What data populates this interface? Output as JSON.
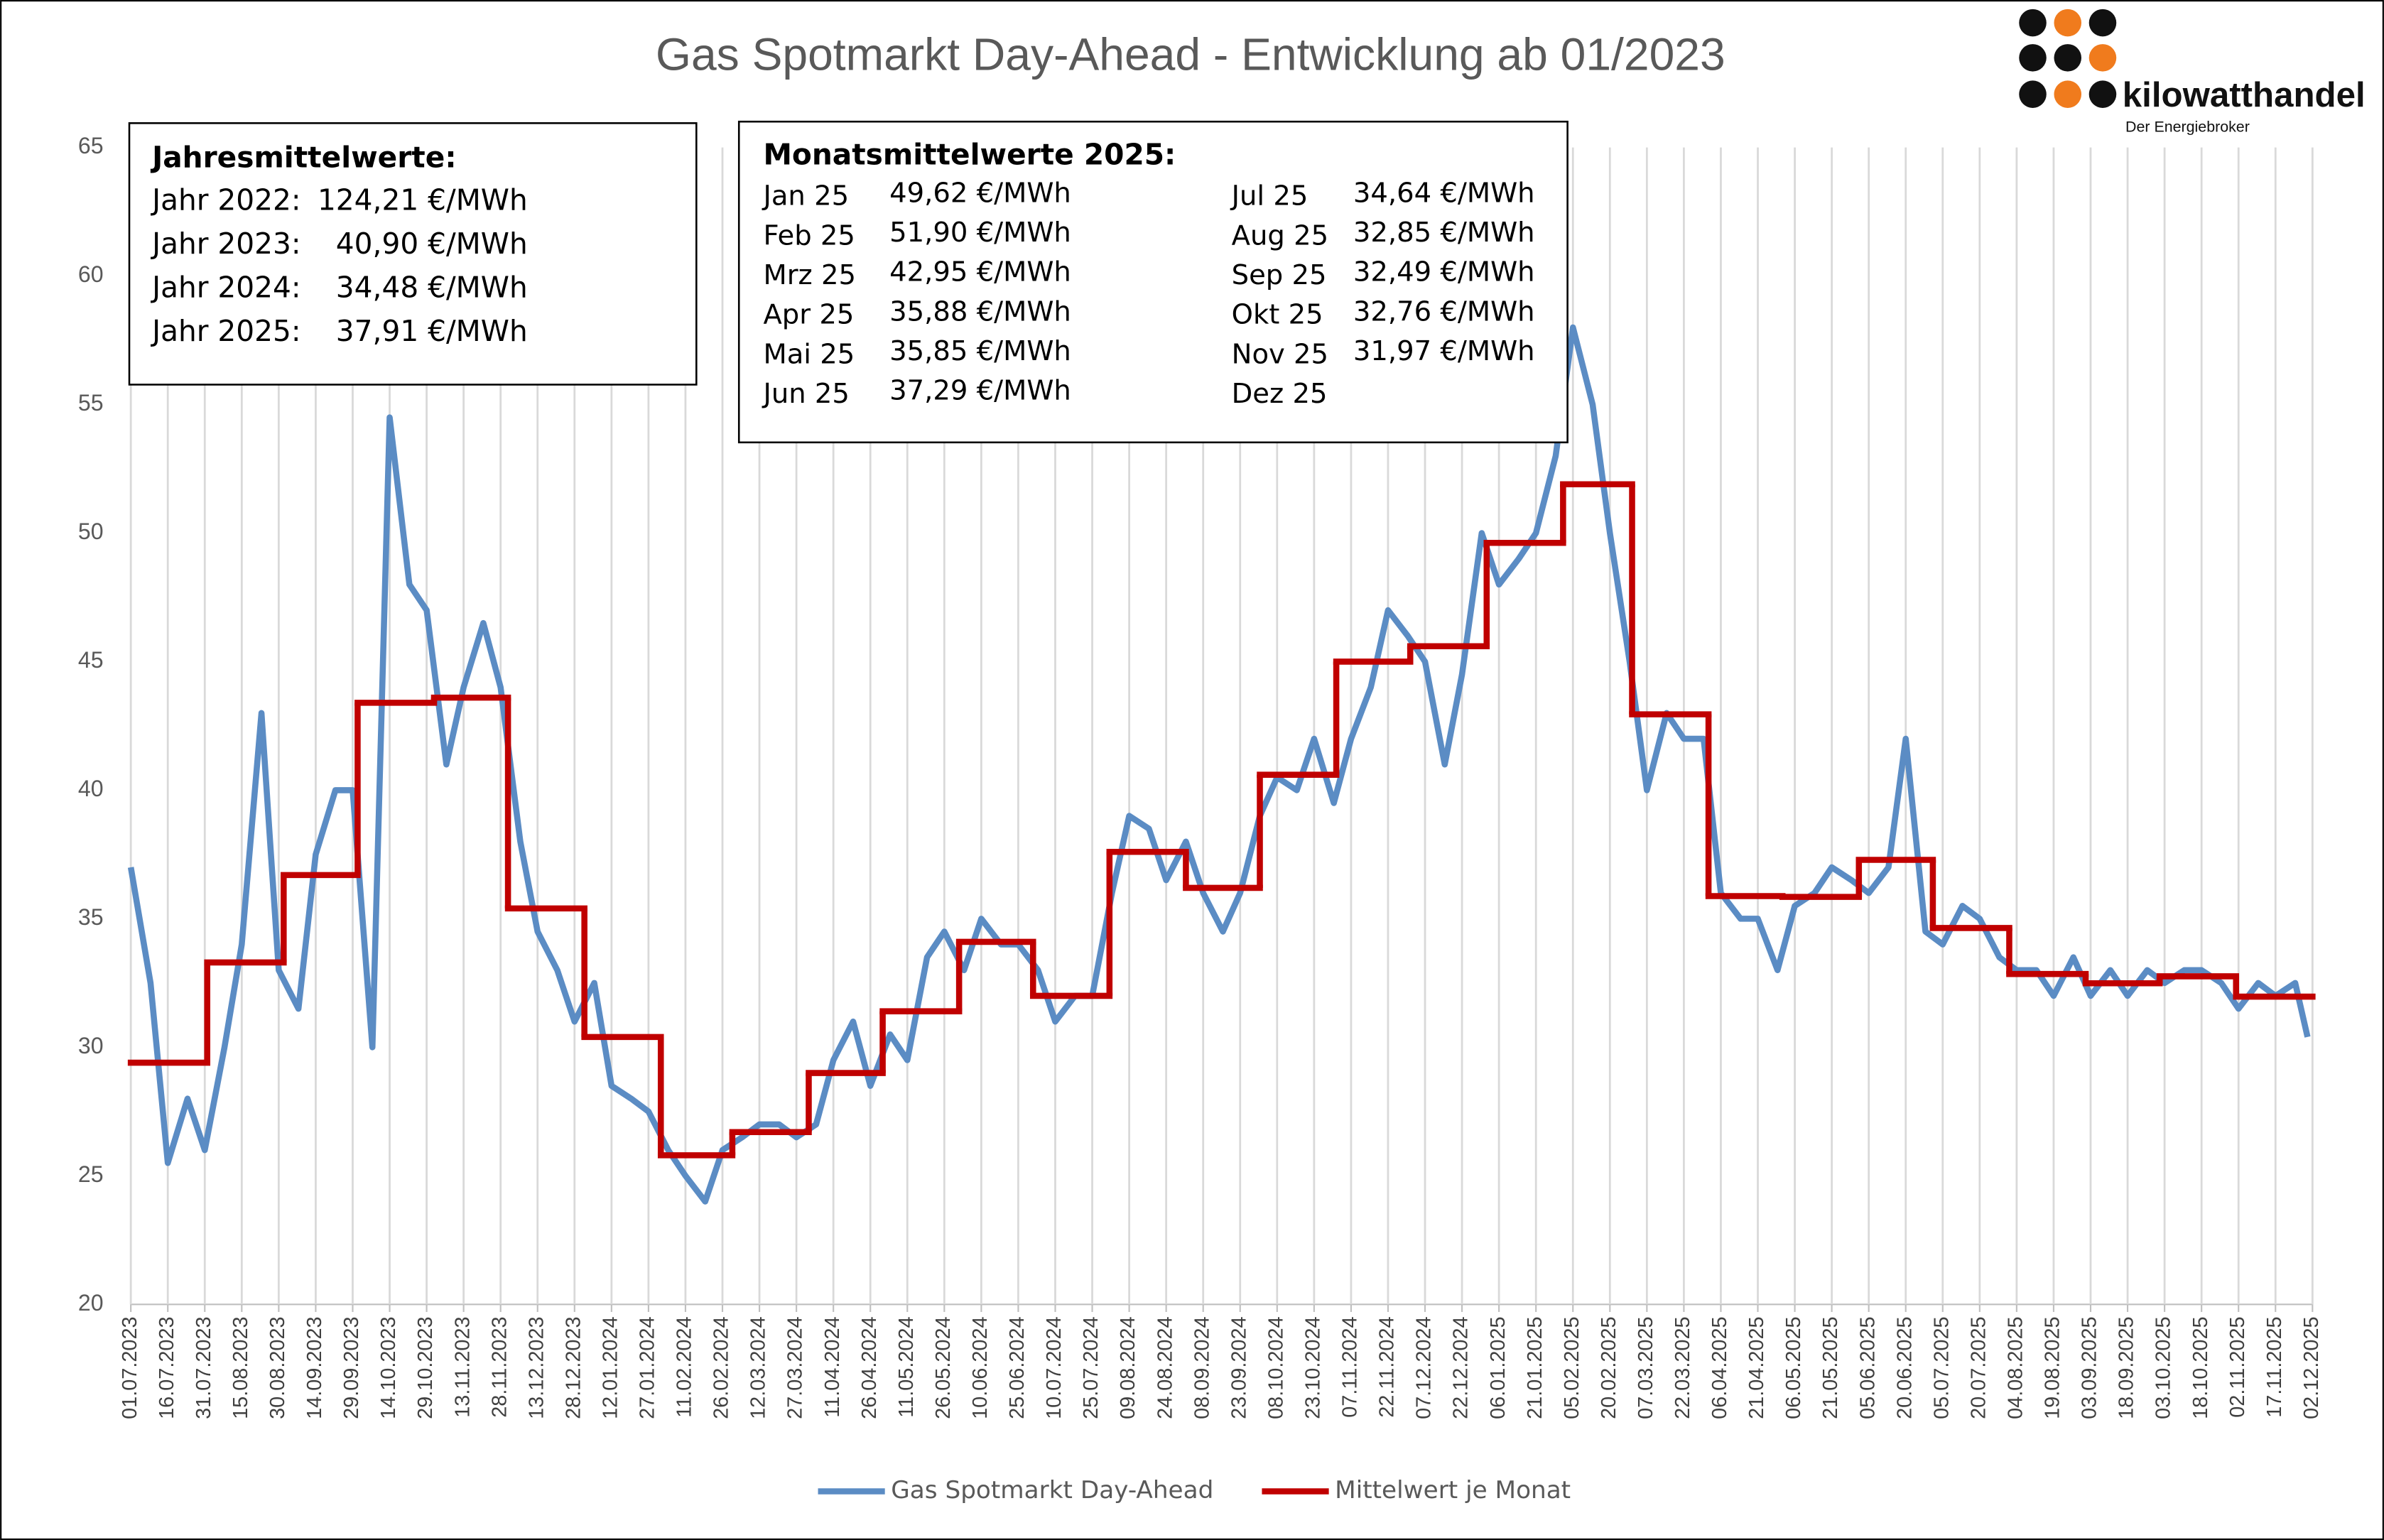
{
  "chart_data": {
    "type": "line",
    "title": "Gas Spotmarkt Day-Ahead  - Entwicklung ab 01/2023",
    "xlim": [
      "01.07.2023",
      "02.12.2025"
    ],
    "xticks": [
      "01.07.2023",
      "16.07.2023",
      "31.07.2023",
      "15.08.2023",
      "30.08.2023",
      "14.09.2023",
      "29.09.2023",
      "14.10.2023",
      "29.10.2023",
      "13.11.2023",
      "28.11.2023",
      "13.12.2023",
      "28.12.2023",
      "12.01.2024",
      "27.01.2024",
      "11.02.2024",
      "26.02.2024",
      "12.03.2024",
      "27.03.2024",
      "11.04.2024",
      "26.04.2024",
      "11.05.2024",
      "26.05.2024",
      "10.06.2024",
      "25.06.2024",
      "10.07.2024",
      "25.07.2024",
      "09.08.2024",
      "24.08.2024",
      "08.09.2024",
      "23.09.2024",
      "08.10.2024",
      "23.10.2024",
      "07.11.2024",
      "22.11.2024",
      "07.12.2024",
      "22.12.2024",
      "06.01.2025",
      "21.01.2025",
      "05.02.2025",
      "20.02.2025",
      "07.03.2025",
      "22.03.2025",
      "06.04.2025",
      "21.04.2025",
      "06.05.2025",
      "21.05.2025",
      "05.06.2025",
      "20.06.2025",
      "05.07.2025",
      "20.07.2025",
      "04.08.2025",
      "19.08.2025",
      "03.09.2025",
      "18.09.2025",
      "03.10.2025",
      "18.10.2025",
      "02.11.2025",
      "17.11.2025",
      "02.12.2025"
    ],
    "ylim": [
      20,
      65
    ],
    "yticks": [
      20,
      25,
      30,
      35,
      40,
      45,
      50,
      55,
      60,
      65
    ],
    "grid": "x",
    "series": [
      {
        "name": "Gas Spotmarkt Day-Ahead",
        "color": "#5b8cc4",
        "x": [
          "01.07.2023",
          "09.07.2023",
          "16.07.2023",
          "24.07.2023",
          "31.07.2023",
          "08.08.2023",
          "15.08.2023",
          "23.08.2023",
          "30.08.2023",
          "07.09.2023",
          "14.09.2023",
          "22.09.2023",
          "29.09.2023",
          "07.10.2023",
          "14.10.2023",
          "22.10.2023",
          "29.10.2023",
          "06.11.2023",
          "13.11.2023",
          "21.11.2023",
          "28.11.2023",
          "06.12.2023",
          "13.12.2023",
          "21.12.2023",
          "28.12.2023",
          "05.01.2024",
          "12.01.2024",
          "20.01.2024",
          "27.01.2024",
          "04.02.2024",
          "11.02.2024",
          "19.02.2024",
          "26.02.2024",
          "05.03.2024",
          "12.03.2024",
          "20.03.2024",
          "27.03.2024",
          "04.04.2024",
          "11.04.2024",
          "19.04.2024",
          "26.04.2024",
          "04.05.2024",
          "11.05.2024",
          "19.05.2024",
          "26.05.2024",
          "03.06.2024",
          "10.06.2024",
          "18.06.2024",
          "25.06.2024",
          "03.07.2024",
          "10.07.2024",
          "18.07.2024",
          "25.07.2024",
          "02.08.2024",
          "09.08.2024",
          "17.08.2024",
          "24.08.2024",
          "01.09.2024",
          "08.09.2024",
          "16.09.2024",
          "23.09.2024",
          "01.10.2024",
          "08.10.2024",
          "16.10.2024",
          "23.10.2024",
          "31.10.2024",
          "07.11.2024",
          "15.11.2024",
          "22.11.2024",
          "30.11.2024",
          "07.12.2024",
          "15.12.2024",
          "22.12.2024",
          "30.12.2024",
          "06.01.2025",
          "14.01.2025",
          "21.01.2025",
          "29.01.2025",
          "05.02.2025",
          "13.02.2025",
          "20.02.2025",
          "28.02.2025",
          "07.03.2025",
          "15.03.2025",
          "22.03.2025",
          "30.03.2025",
          "06.04.2025",
          "14.04.2025",
          "21.04.2025",
          "29.04.2025",
          "06.05.2025",
          "14.05.2025",
          "21.05.2025",
          "29.05.2025",
          "05.06.2025",
          "13.06.2025",
          "20.06.2025",
          "28.06.2025",
          "05.07.2025",
          "13.07.2025",
          "20.07.2025",
          "28.07.2025",
          "04.08.2025",
          "12.08.2025",
          "19.08.2025",
          "27.08.2025",
          "03.09.2025",
          "11.09.2025",
          "18.09.2025",
          "26.09.2025",
          "03.10.2025",
          "11.10.2025",
          "18.10.2025",
          "26.10.2025",
          "02.11.2025",
          "10.11.2025",
          "17.11.2025",
          "25.11.2025",
          "30.11.2025"
        ],
        "values": [
          37.0,
          32.5,
          25.5,
          28.0,
          26.0,
          30.0,
          34.0,
          43.0,
          33.0,
          31.5,
          37.5,
          40.0,
          40.0,
          30.0,
          54.5,
          48.0,
          47.0,
          41.0,
          44.0,
          46.5,
          44.0,
          38.0,
          34.5,
          33.0,
          31.0,
          32.5,
          28.5,
          28.0,
          27.5,
          26.0,
          25.0,
          24.0,
          26.0,
          26.5,
          27.0,
          27.0,
          26.5,
          27.0,
          29.5,
          31.0,
          28.5,
          30.5,
          29.5,
          33.5,
          34.5,
          33.0,
          35.0,
          34.0,
          34.0,
          33.0,
          31.0,
          32.0,
          32.0,
          36.0,
          39.0,
          38.5,
          36.5,
          38.0,
          36.0,
          34.5,
          36.0,
          39.0,
          40.5,
          40.0,
          42.0,
          39.5,
          42.0,
          44.0,
          47.0,
          46.0,
          45.0,
          41.0,
          44.5,
          50.0,
          48.0,
          49.0,
          50.0,
          53.0,
          58.0,
          55.0,
          50.0,
          45.0,
          40.0,
          43.0,
          42.0,
          42.0,
          36.0,
          35.0,
          35.0,
          33.0,
          35.5,
          36.0,
          37.0,
          36.5,
          36.0,
          37.0,
          42.0,
          34.5,
          34.0,
          35.5,
          35.0,
          33.5,
          33.0,
          33.0,
          32.0,
          33.5,
          32.0,
          33.0,
          32.0,
          33.0,
          32.5,
          33.0,
          33.0,
          32.5,
          31.5,
          32.5,
          32.0,
          32.5,
          30.4
        ]
      },
      {
        "name": "Mittelwert je Monat",
        "color": "#c00000",
        "step": true,
        "x": [
          "01.07.2023",
          "01.08.2023",
          "01.09.2023",
          "01.10.2023",
          "01.11.2023",
          "01.12.2023",
          "01.01.2024",
          "01.02.2024",
          "01.03.2024",
          "01.04.2024",
          "01.05.2024",
          "01.06.2024",
          "01.07.2024",
          "01.08.2024",
          "01.09.2024",
          "01.10.2024",
          "01.11.2024",
          "01.12.2024",
          "01.01.2025",
          "01.02.2025",
          "01.03.2025",
          "01.04.2025",
          "01.05.2025",
          "01.06.2025",
          "01.07.2025",
          "01.08.2025",
          "01.09.2025",
          "01.10.2025",
          "01.11.2025"
        ],
        "values": [
          29.4,
          33.3,
          36.7,
          43.4,
          43.6,
          35.4,
          30.4,
          25.8,
          26.7,
          29.0,
          31.4,
          34.1,
          32.0,
          37.6,
          36.2,
          40.6,
          45.0,
          45.6,
          49.62,
          51.9,
          42.95,
          35.88,
          35.85,
          37.29,
          34.64,
          32.85,
          32.49,
          32.76,
          31.97
        ]
      }
    ],
    "legend": "bottom",
    "annotations": {
      "yearly": {
        "title": "Jahresmittelwerte:",
        "rows": [
          [
            "Jahr 2022:",
            "124,21 €/MWh"
          ],
          [
            "Jahr 2023:",
            "40,90 €/MWh"
          ],
          [
            "Jahr 2024:",
            "34,48 €/MWh"
          ],
          [
            "Jahr 2025:",
            "37,91 €/MWh"
          ]
        ]
      },
      "monthly": {
        "title": "Monatsmittelwerte 2025:",
        "rows": [
          [
            "Jan 25",
            "49,62 €/MWh"
          ],
          [
            "Feb 25",
            "51,90 €/MWh"
          ],
          [
            "Mrz 25",
            "42,95 €/MWh"
          ],
          [
            "Apr 25",
            "35,88 €/MWh"
          ],
          [
            "Mai 25",
            "35,85 €/MWh"
          ],
          [
            "Jun 25",
            "37,29 €/MWh"
          ],
          [
            "Jul 25",
            "34,64 €/MWh"
          ],
          [
            "Aug 25",
            "32,85 €/MWh"
          ],
          [
            "Sep 25",
            "32,49 €/MWh"
          ],
          [
            "Okt 25",
            "32,76 €/MWh"
          ],
          [
            "Nov 25",
            "31,97 €/MWh"
          ],
          [
            "Dez 25"
          ]
        ]
      }
    },
    "logo": {
      "name": "kilowatthandel",
      "tagline": "Der Energiebroker"
    }
  }
}
